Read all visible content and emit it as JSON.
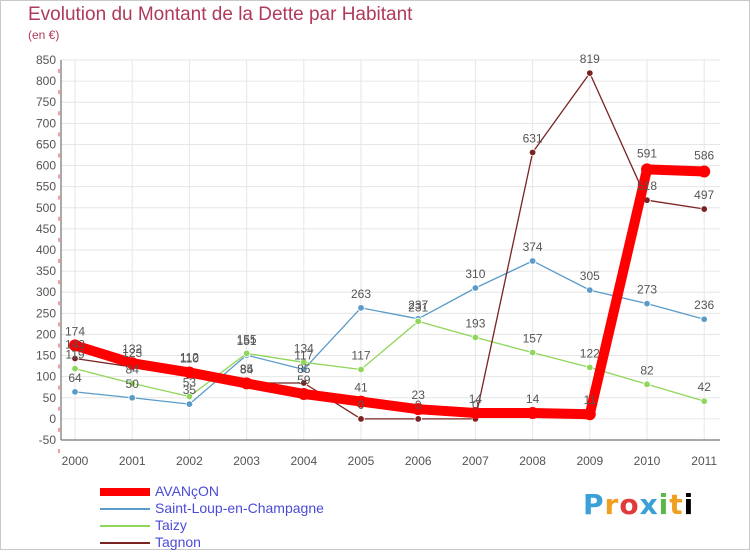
{
  "chart_data": {
    "type": "line",
    "title": "Evolution du Montant de la Dette par Habitant",
    "subtitle": "(en €)",
    "xlabel": "",
    "ylabel": "",
    "x": [
      "2000",
      "2001",
      "2002",
      "2003",
      "2004",
      "2005",
      "2006",
      "2007",
      "2008",
      "2009",
      "2010",
      "2011"
    ],
    "ylim": [
      -50,
      850
    ],
    "yticks": [
      -50,
      0,
      50,
      100,
      150,
      200,
      250,
      300,
      350,
      400,
      450,
      500,
      550,
      600,
      650,
      700,
      750,
      800,
      850
    ],
    "grid": true,
    "legend": "bottom-left",
    "series": [
      {
        "name": "AVANçON",
        "color": "#ff0000",
        "values": [
          174,
          132,
          110,
          84,
          59,
          41,
          23,
          14,
          14,
          11,
          591,
          586
        ],
        "labels": [
          "174",
          "132",
          "110",
          "84",
          "59",
          "41",
          "23",
          "14",
          "14",
          "11",
          "591",
          "586"
        ]
      },
      {
        "name": "Saint-Loup-en-Champagne",
        "color": "#5b9bc8",
        "values": [
          64,
          50,
          35,
          151,
          117,
          263,
          237,
          310,
          374,
          305,
          273,
          236
        ],
        "labels": [
          "64",
          "50",
          "35",
          "151",
          "117",
          "263",
          "237",
          "310",
          "374",
          "305",
          "273",
          "236"
        ]
      },
      {
        "name": "Taizy",
        "color": "#8fd65a",
        "values": [
          119,
          84,
          53,
          155,
          134,
          117,
          231,
          193,
          157,
          122,
          82,
          42
        ],
        "labels": [
          "119",
          "84",
          "53",
          "155",
          "134",
          "117",
          "231",
          "193",
          "157",
          "122",
          "82",
          "42"
        ]
      },
      {
        "name": "Tagnon",
        "color": "#7a2323",
        "values": [
          143,
          123,
          112,
          85,
          85,
          0,
          0,
          0,
          631,
          819,
          518,
          497
        ],
        "labels": [
          "143",
          "123",
          "112",
          "85",
          "85",
          "0",
          "0",
          "0",
          "631",
          "819",
          "518",
          "497"
        ]
      }
    ]
  },
  "logo": {
    "text": "Proxiti",
    "letters": [
      "P",
      "r",
      "o",
      "x",
      "i",
      "t",
      "i"
    ]
  }
}
